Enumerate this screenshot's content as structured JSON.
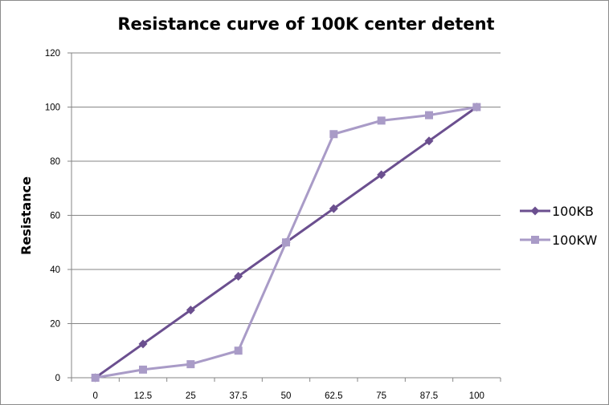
{
  "chart_data": {
    "type": "line",
    "title": "Resistance curve of 100K center detent",
    "xlabel": "",
    "ylabel": "Resistance",
    "x": [
      "0",
      "12.5",
      "25",
      "37.5",
      "50",
      "62.5",
      "75",
      "87.5",
      "100"
    ],
    "ylim": [
      0,
      120
    ],
    "yticks": [
      "0",
      "20",
      "40",
      "60",
      "80",
      "100",
      "120"
    ],
    "grid": "horizontal",
    "legend_position": "right",
    "series": [
      {
        "name": "100KB",
        "marker": "diamond",
        "color": "#6b4f8f",
        "values": [
          0,
          12.5,
          25,
          37.5,
          50,
          62.5,
          75,
          87.5,
          100
        ]
      },
      {
        "name": "100KW",
        "marker": "square",
        "color": "#a99bc7",
        "values": [
          0,
          3,
          5,
          10,
          50,
          90,
          95,
          97,
          100
        ]
      }
    ]
  }
}
